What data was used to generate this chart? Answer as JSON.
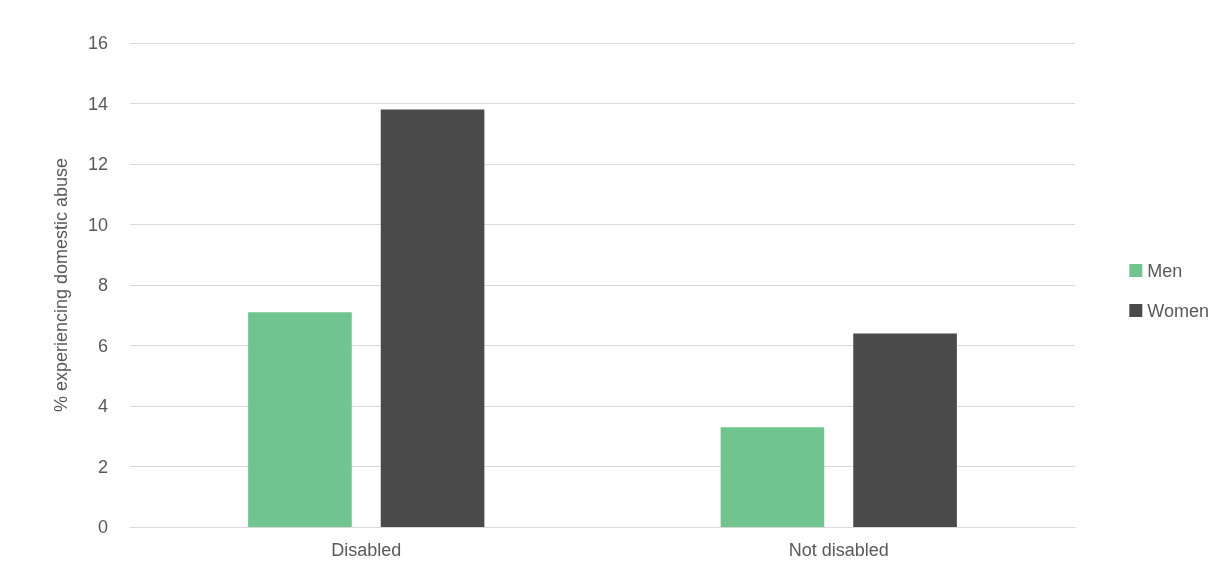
{
  "chart_data": {
    "type": "bar",
    "ylabel": "% experiencing domestic abuse",
    "categories": [
      "Disabled",
      "Not disabled"
    ],
    "series": [
      {
        "name": "Men",
        "color": "#70c48e",
        "values": [
          7.1,
          3.3
        ]
      },
      {
        "name": "Women",
        "color": "#4a4a4a",
        "values": [
          13.8,
          6.4
        ]
      }
    ],
    "ylim": [
      0,
      16
    ],
    "yticks": [
      0,
      2,
      4,
      6,
      8,
      10,
      12,
      14,
      16
    ],
    "grid": "y",
    "legend": "right"
  }
}
